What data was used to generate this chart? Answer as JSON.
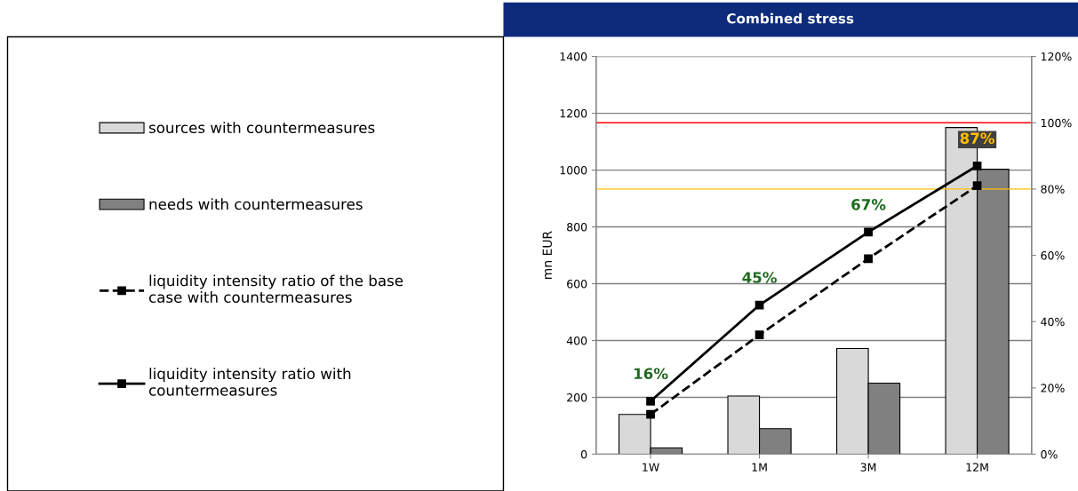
{
  "chart_data": {
    "type": "bar",
    "title": "Combined stress",
    "ylabel": "mn EUR",
    "categories": [
      "1W",
      "1M",
      "3M",
      "12M"
    ],
    "series": [
      {
        "name": "sources with countermeasures",
        "color": "#d9d9d9",
        "values": [
          140,
          205,
          372,
          1150
        ]
      },
      {
        "name": "needs with countermeasures",
        "color": "#808080",
        "values": [
          22,
          90,
          250,
          1003
        ]
      },
      {
        "name": "liquidity intensity ratio of the base case with countermeasures",
        "type": "line",
        "axis": "y2",
        "color": "#000000",
        "line_style": "dashed",
        "marker": "square",
        "values": [
          12,
          36,
          59,
          81
        ]
      },
      {
        "name": "liquidity intensity ratio with countermeasures",
        "type": "line",
        "axis": "y2",
        "color": "#000000",
        "line_style": "solid",
        "marker": "square",
        "values": [
          16,
          45,
          67,
          87
        ],
        "value_labels": [
          "16%",
          "45%",
          "67%",
          "87%"
        ]
      }
    ],
    "ylim": [
      0,
      1400
    ],
    "yticks": [
      0,
      200,
      400,
      600,
      800,
      1000,
      1200,
      1400
    ],
    "y2lim": [
      0,
      120
    ],
    "y2ticks": [
      {
        "value": 0,
        "label": "0%"
      },
      {
        "value": 20,
        "label": "20%"
      },
      {
        "value": 40,
        "label": "40%"
      },
      {
        "value": 60,
        "label": "60%"
      },
      {
        "value": 80,
        "label": "80%"
      },
      {
        "value": 100,
        "label": "100%"
      },
      {
        "value": 120,
        "label": "120%"
      }
    ],
    "ref_lines": [
      {
        "axis": "y2",
        "value": 100,
        "color": "#ff0000"
      },
      {
        "axis": "y2",
        "value": 80,
        "color": "#ffc000"
      }
    ],
    "grid": "y",
    "legend": "left"
  }
}
